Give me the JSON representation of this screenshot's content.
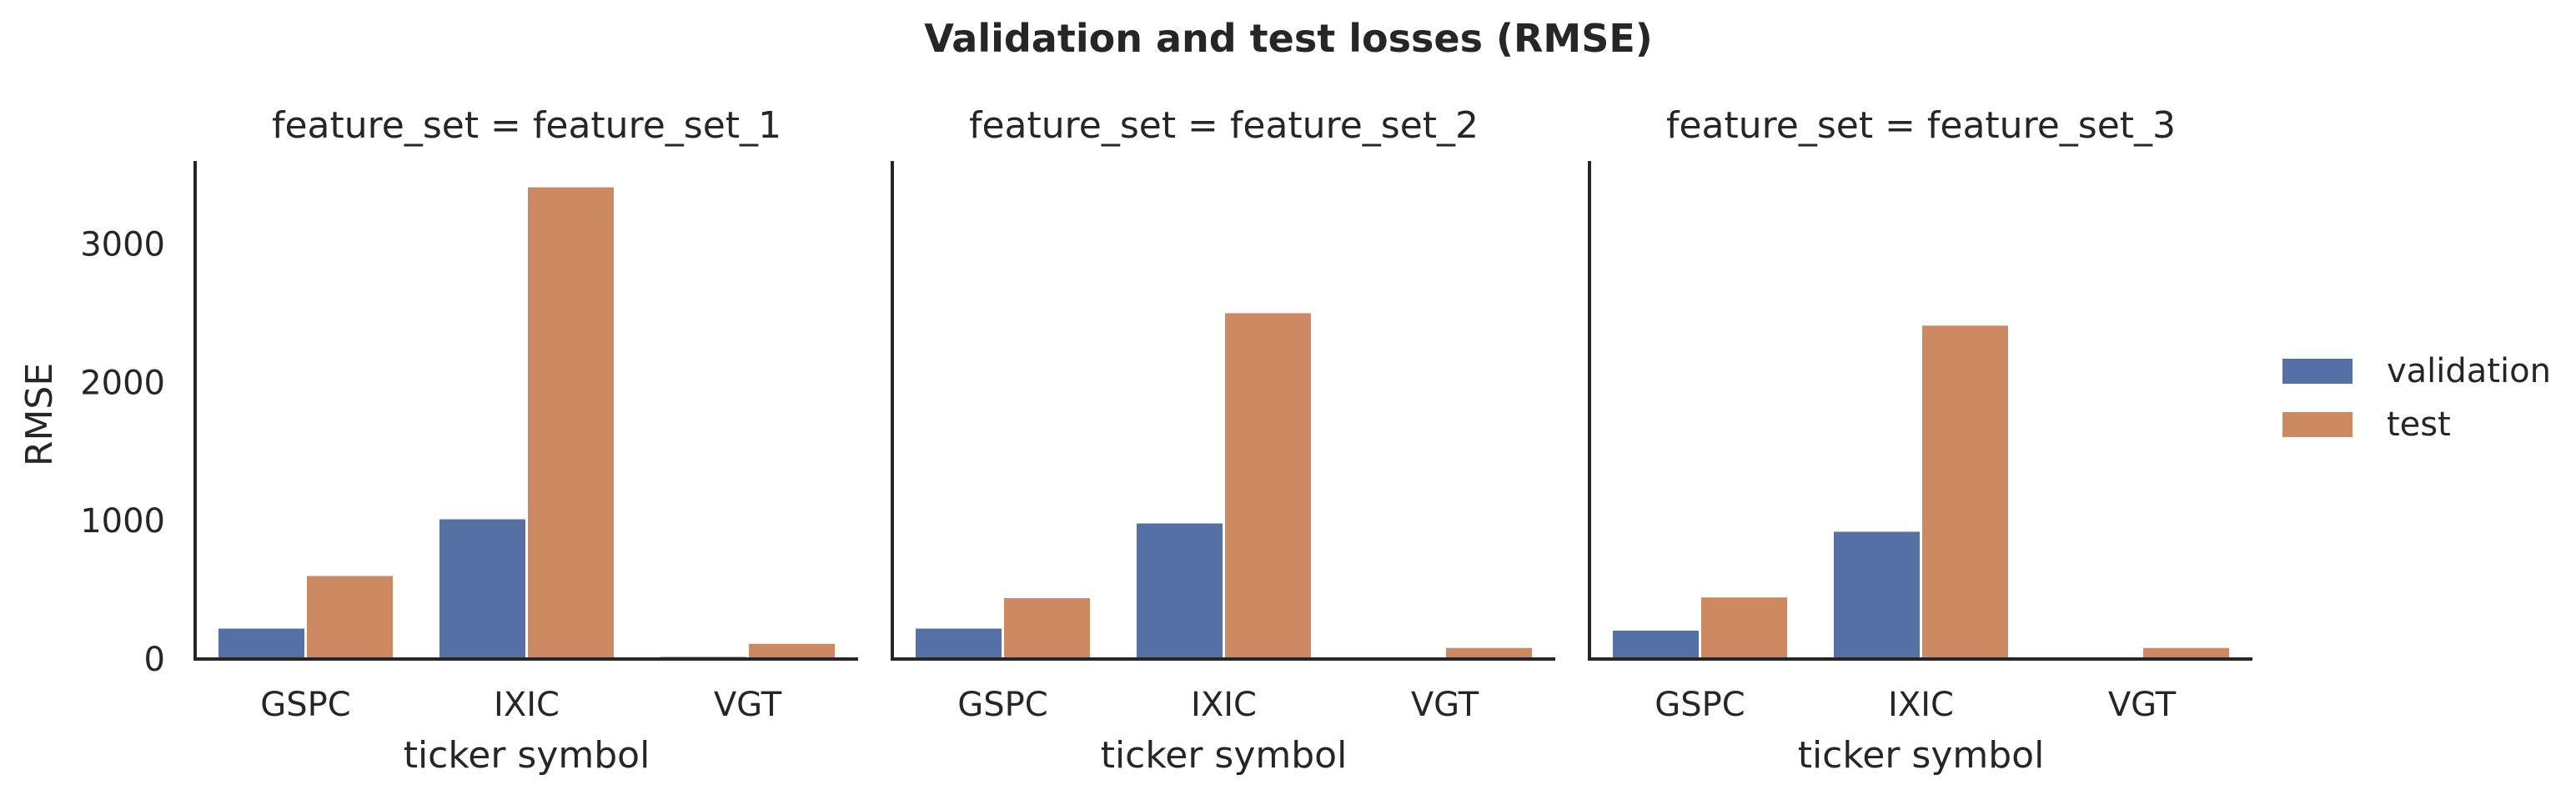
{
  "chart_data": {
    "type": "bar",
    "title": "Validation and test losses (RMSE)",
    "ylabel": "RMSE",
    "ylim": [
      0,
      3600
    ],
    "yticks": [
      0,
      1000,
      2000,
      3000
    ],
    "grid": false,
    "legend_position": "right",
    "colors": {
      "validation": "#5470a4",
      "test": "#cd8962"
    },
    "facets": [
      {
        "title": "feature_set = feature_set_1",
        "xlabel": "ticker symbol",
        "categories": [
          "GSPC",
          "IXIC",
          "VGT"
        ],
        "series": [
          {
            "name": "validation",
            "values": [
              220,
              1010,
              15
            ]
          },
          {
            "name": "test",
            "values": [
              600,
              3410,
              110
            ]
          }
        ]
      },
      {
        "title": "feature_set = feature_set_2",
        "xlabel": "ticker symbol",
        "categories": [
          "GSPC",
          "IXIC",
          "VGT"
        ],
        "series": [
          {
            "name": "validation",
            "values": [
              220,
              980,
              12
            ]
          },
          {
            "name": "test",
            "values": [
              440,
              2500,
              80
            ]
          }
        ]
      },
      {
        "title": "feature_set = feature_set_3",
        "xlabel": "ticker symbol",
        "categories": [
          "GSPC",
          "IXIC",
          "VGT"
        ],
        "series": [
          {
            "name": "validation",
            "values": [
              205,
              920,
              12
            ]
          },
          {
            "name": "test",
            "values": [
              445,
              2410,
              80
            ]
          }
        ]
      }
    ]
  }
}
